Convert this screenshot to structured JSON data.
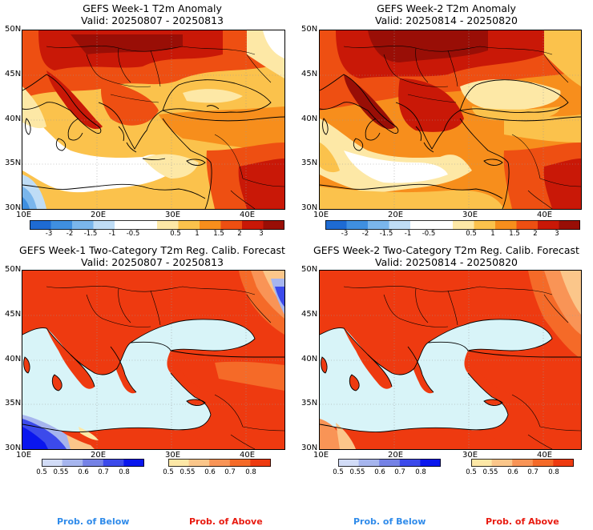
{
  "colors": {
    "anomaly_scale": [
      "#1e6bd3",
      "#3f8fe0",
      "#7ab6ec",
      "#bfddf6",
      "#ffffff",
      "#ffffff",
      "#fde8a6",
      "#fbc24c",
      "#f78e1c",
      "#ee4f12",
      "#c91807",
      "#990e06"
    ],
    "below_scale": [
      "#d2dcf7",
      "#a6b5ee",
      "#7582e6",
      "#3c4aeb",
      "#0a16ee"
    ],
    "above_scale": [
      "#fde8a6",
      "#fbc68a",
      "#f99456",
      "#f56a28",
      "#ee3a10"
    ],
    "sea_prob": "#d8f4f8",
    "label_below": "#2f8bea",
    "label_above": "#e81b10"
  },
  "panels": [
    {
      "title": "GEFS Week-1 T2m Anomaly",
      "valid": "Valid: 20250807 - 20250813",
      "lat_labels": [
        "50N",
        "45N",
        "40N",
        "35N",
        "30N"
      ],
      "lon_labels": [
        "10E",
        "20E",
        "30E",
        "40E"
      ],
      "colorbar_labels": [
        "-3",
        "-2",
        "-1.5",
        "-1",
        "-0.5",
        "0.5",
        "1",
        "1.5",
        "2",
        "3"
      ]
    },
    {
      "title": "GEFS Week-2 T2m Anomaly",
      "valid": "Valid: 20250814 - 20250820",
      "lat_labels": [
        "50N",
        "45N",
        "40N",
        "35N",
        "30N"
      ],
      "lon_labels": [
        "10E",
        "20E",
        "30E",
        "40E"
      ],
      "colorbar_labels": [
        "-3",
        "-2",
        "-1.5",
        "-1",
        "-0.5",
        "0.5",
        "1",
        "1.5",
        "2",
        "3"
      ]
    },
    {
      "title": "GEFS Week-1 Two-Category T2m Reg. Calib. Forecast",
      "valid": "Valid: 20250807 - 20250813",
      "lat_labels": [
        "50N",
        "45N",
        "40N",
        "35N",
        "30N"
      ],
      "lon_labels": [
        "10E",
        "20E",
        "30E",
        "40E"
      ],
      "below_labels": [
        "0.5",
        "0.55",
        "0.6",
        "0.7",
        "0.8"
      ],
      "above_labels": [
        "0.5",
        "0.55",
        "0.6",
        "0.7",
        "0.8"
      ],
      "prob_below": "Prob. of Below",
      "prob_above": "Prob. of Above"
    },
    {
      "title": "GEFS Week-2 Two-Category T2m Reg. Calib. Forecast",
      "valid": "Valid: 20250814 - 20250820",
      "lat_labels": [
        "50N",
        "45N",
        "40N",
        "35N",
        "30N"
      ],
      "lon_labels": [
        "10E",
        "20E",
        "30E",
        "40E"
      ],
      "below_labels": [
        "0.5",
        "0.55",
        "0.6",
        "0.7",
        "0.8"
      ],
      "above_labels": [
        "0.5",
        "0.55",
        "0.6",
        "0.7",
        "0.8"
      ],
      "prob_below": "Prob. of Below",
      "prob_above": "Prob. of Above"
    }
  ]
}
